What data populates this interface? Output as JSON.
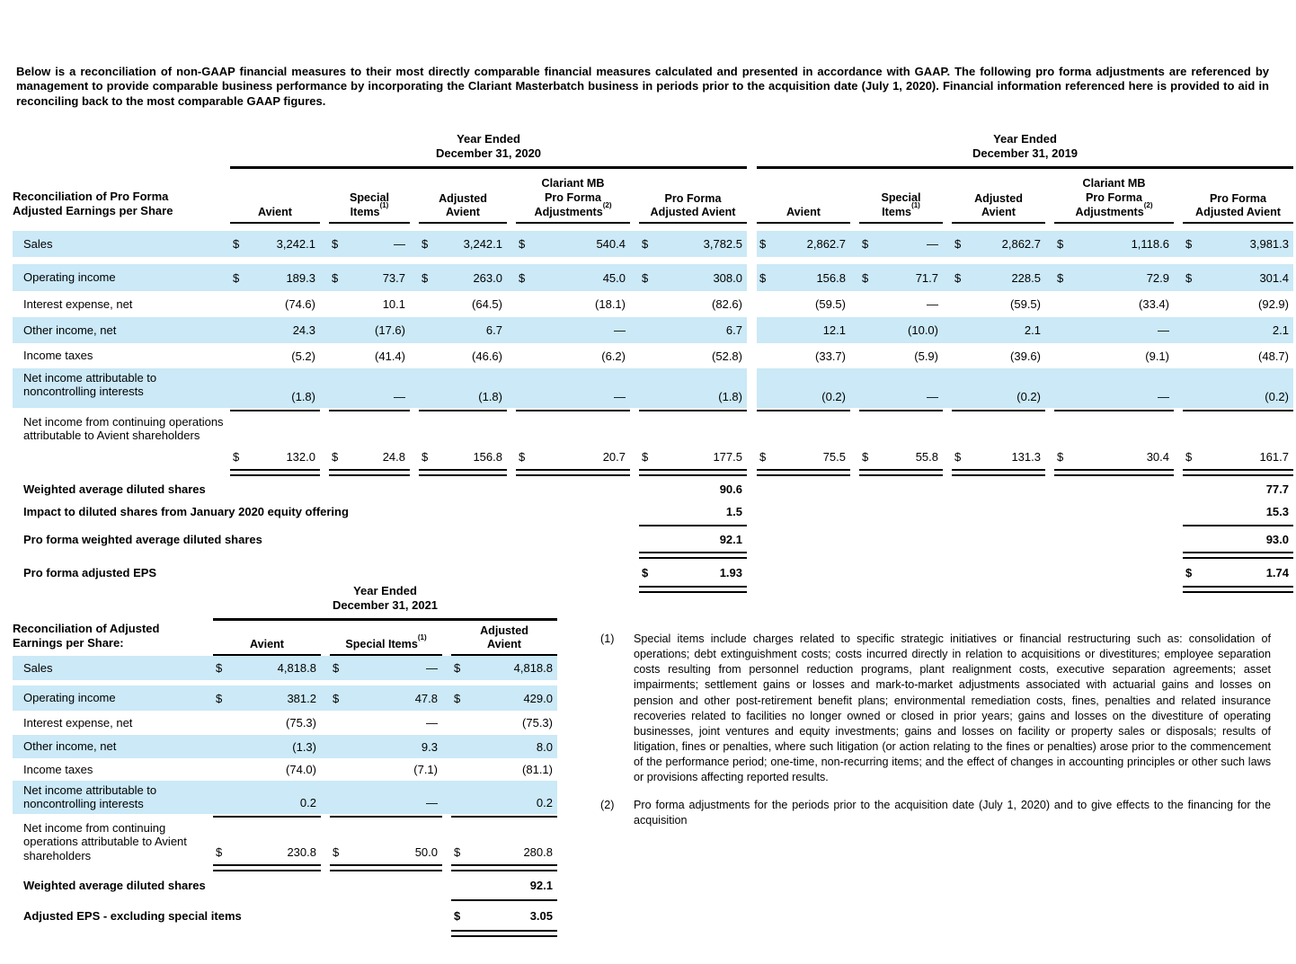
{
  "currency_symbol": "$",
  "shade_color": "#cbe9f7",
  "intro": "Below is a reconciliation of non-GAAP financial measures to their most directly comparable financial measures calculated and presented in accordance with GAAP. The following pro forma adjustments are referenced by management to provide comparable business performance by incorporating the Clariant Masterbatch business in periods prior to the acquisition date (July 1, 2020). Financial information referenced here is provided to aid in reconciling back to the most comparable GAAP figures.",
  "table1": {
    "row_header": "Reconciliation of Pro Forma\nAdjusted Earnings per Share",
    "group_titles": [
      "Year Ended\nDecember 31, 2020",
      "Year Ended\nDecember 31, 2019"
    ],
    "col_headers": [
      {
        "label": "Avient",
        "sup": ""
      },
      {
        "label": "Special\nItems",
        "sup": "(1)"
      },
      {
        "label": "Adjusted\nAvient",
        "sup": ""
      },
      {
        "label": "Clariant MB\nPro Forma\nAdjustments",
        "sup": "(2)"
      },
      {
        "label": "Pro Forma\nAdjusted Avient",
        "sup": ""
      }
    ],
    "rows": [
      {
        "label": "Sales",
        "shade": true,
        "dollar": true,
        "rule_below": "none",
        "values": [
          "3,242.1",
          "—",
          "3,242.1",
          "540.4",
          "3,782.5",
          "2,862.7",
          "—",
          "2,862.7",
          "1,118.6",
          "3,981.3"
        ]
      },
      {
        "label": "Operating income",
        "shade": true,
        "dollar": true,
        "rule_below": "none",
        "values": [
          "189.3",
          "73.7",
          "263.0",
          "45.0",
          "308.0",
          "156.8",
          "71.7",
          "228.5",
          "72.9",
          "301.4"
        ]
      },
      {
        "label": "Interest expense, net",
        "shade": false,
        "dollar": false,
        "rule_below": "none",
        "values": [
          "(74.6)",
          "10.1",
          "(64.5)",
          "(18.1)",
          "(82.6)",
          "(59.5)",
          "—",
          "(59.5)",
          "(33.4)",
          "(92.9)"
        ]
      },
      {
        "label": "Other income, net",
        "shade": true,
        "dollar": false,
        "rule_below": "none",
        "values": [
          "24.3",
          "(17.6)",
          "6.7",
          "—",
          "6.7",
          "12.1",
          "(10.0)",
          "2.1",
          "—",
          "2.1"
        ]
      },
      {
        "label": "Income taxes",
        "shade": false,
        "dollar": false,
        "rule_below": "none",
        "values": [
          "(5.2)",
          "(41.4)",
          "(46.6)",
          "(6.2)",
          "(52.8)",
          "(33.7)",
          "(5.9)",
          "(39.6)",
          "(9.1)",
          "(48.7)"
        ]
      },
      {
        "label": "Net income attributable to noncontrolling interests",
        "shade": true,
        "dollar": false,
        "rule_below": "single",
        "values": [
          "(1.8)",
          "—",
          "(1.8)",
          "—",
          "(1.8)",
          "(0.2)",
          "—",
          "(0.2)",
          "—",
          "(0.2)"
        ]
      },
      {
        "label": "Net income from continuing operations attributable to Avient shareholders",
        "shade": false,
        "dollar": true,
        "rule_below": "double",
        "values": [
          "132.0",
          "24.8",
          "156.8",
          "20.7",
          "177.5",
          "75.5",
          "55.8",
          "131.3",
          "30.4",
          "161.7"
        ]
      }
    ],
    "share_rows": [
      {
        "label": "Weighted average diluted shares",
        "dollar": false,
        "v2020": "90.6",
        "v2019": "77.7",
        "rule_below": "none"
      },
      {
        "label": "Impact to diluted shares from January 2020 equity offering",
        "dollar": false,
        "v2020": "1.5",
        "v2019": "15.3",
        "rule_below": "single"
      },
      {
        "label": "Pro forma weighted average diluted shares",
        "dollar": false,
        "v2020": "92.1",
        "v2019": "93.0",
        "rule_below": "double"
      },
      {
        "label": "Pro forma adjusted EPS",
        "dollar": true,
        "v2020": "1.93",
        "v2019": "1.74",
        "rule_below": "double"
      }
    ]
  },
  "table2": {
    "row_header": "Reconciliation of Adjusted\nEarnings per Share:",
    "group_title": "Year Ended\nDecember 31, 2021",
    "col_headers": [
      {
        "label": "Avient",
        "sup": ""
      },
      {
        "label": "Special Items",
        "sup": "(1)"
      },
      {
        "label": "Adjusted\nAvient",
        "sup": ""
      }
    ],
    "rows": [
      {
        "label": "Sales",
        "shade": true,
        "dollar": true,
        "rule_below": "none",
        "values": [
          "4,818.8",
          "—",
          "4,818.8"
        ]
      },
      {
        "label": "Operating income",
        "shade": true,
        "dollar": true,
        "rule_below": "none",
        "values": [
          "381.2",
          "47.8",
          "429.0"
        ]
      },
      {
        "label": "Interest expense, net",
        "shade": false,
        "dollar": false,
        "rule_below": "none",
        "values": [
          "(75.3)",
          "—",
          "(75.3)"
        ]
      },
      {
        "label": "Other income, net",
        "shade": true,
        "dollar": false,
        "rule_below": "none",
        "values": [
          "(1.3)",
          "9.3",
          "8.0"
        ]
      },
      {
        "label": "Income taxes",
        "shade": false,
        "dollar": false,
        "rule_below": "none",
        "values": [
          "(74.0)",
          "(7.1)",
          "(81.1)"
        ]
      },
      {
        "label": "Net income attributable to noncontrolling interests",
        "shade": true,
        "dollar": false,
        "rule_below": "single",
        "values": [
          "0.2",
          "—",
          "0.2"
        ]
      },
      {
        "label": "Net income from continuing operations attributable to Avient shareholders",
        "shade": false,
        "dollar": true,
        "rule_below": "double",
        "values": [
          "230.8",
          "50.0",
          "280.8"
        ]
      }
    ],
    "share_rows": [
      {
        "label": "Weighted average diluted shares",
        "dollar": false,
        "value": "92.1",
        "rule_below": "single"
      },
      {
        "label": "Adjusted EPS - excluding special items",
        "dollar": true,
        "value": "3.05",
        "rule_below": "double"
      }
    ]
  },
  "footnotes": [
    {
      "number": "(1)",
      "text": "Special items include charges related to specific strategic initiatives or financial restructuring such as: consolidation of operations; debt extinguishment costs; costs incurred directly in relation to acquisitions or divestitures; employee separation costs resulting from personnel reduction programs, plant realignment costs, executive separation agreements; asset impairments; settlement gains or losses and mark-to-market adjustments associated with actuarial gains and losses on pension and other post-retirement benefit plans; environmental remediation costs, fines, penalties and related insurance recoveries related to facilities no longer owned or closed in prior years; gains and losses on the divestiture of operating businesses, joint ventures and equity investments; gains and losses on facility or property sales or disposals; results of litigation, fines or penalties, where such litigation (or action relating to the fines or penalties) arose prior to the commencement of the performance period; one-time, non-recurring items; and the effect of changes in accounting principles or other such laws or provisions affecting reported results."
    },
    {
      "number": "(2)",
      "text": "Pro forma adjustments for the periods prior to the acquisition date (July 1, 2020) and to give effects to the financing for the acquisition"
    }
  ]
}
